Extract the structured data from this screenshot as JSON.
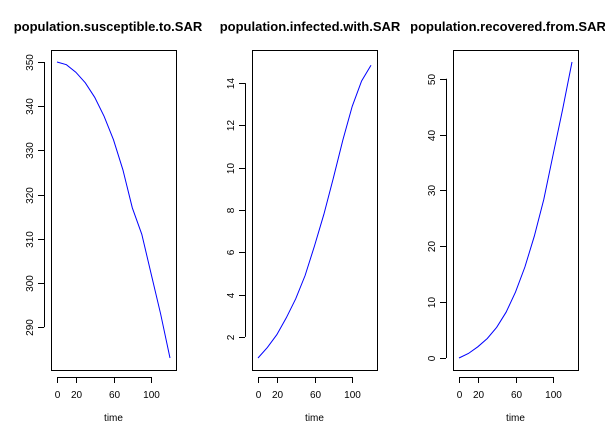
{
  "chart_data": [
    {
      "type": "line",
      "title": "population.susceptible.to.SAR",
      "xlabel": "time",
      "ylabel": "",
      "xlim": [
        0,
        120
      ],
      "ylim": [
        283,
        350
      ],
      "xticks": [
        0,
        20,
        60,
        100
      ],
      "yticks": [
        290,
        300,
        310,
        320,
        330,
        340,
        350
      ],
      "grid": false,
      "series": [
        {
          "color": "#0000ff",
          "x": [
            0,
            10,
            20,
            30,
            40,
            50,
            60,
            70,
            80,
            90,
            100,
            110,
            120
          ],
          "y": [
            350,
            349.4,
            347.7,
            345.3,
            342.0,
            337.7,
            332.4,
            325.6,
            317.0,
            311.0,
            302.0,
            293.0,
            283.0
          ]
        }
      ]
    },
    {
      "type": "line",
      "title": "population.infected.with.SAR",
      "xlabel": "time",
      "ylabel": "",
      "xlim": [
        0,
        120
      ],
      "ylim": [
        1,
        15
      ],
      "xticks": [
        0,
        20,
        60,
        100
      ],
      "yticks": [
        2,
        4,
        6,
        8,
        10,
        12,
        14
      ],
      "grid": false,
      "series": [
        {
          "color": "#0000ff",
          "x": [
            0,
            10,
            20,
            30,
            40,
            50,
            60,
            70,
            80,
            90,
            100,
            110,
            120
          ],
          "y": [
            1.0,
            1.5,
            2.1,
            2.9,
            3.8,
            4.9,
            6.3,
            7.8,
            9.5,
            11.3,
            12.9,
            14.1,
            14.85
          ]
        }
      ]
    },
    {
      "type": "line",
      "title": "population.recovered.from.SAR",
      "xlabel": "time",
      "ylabel": "",
      "xlim": [
        0,
        120
      ],
      "ylim": [
        0,
        53
      ],
      "xticks": [
        0,
        20,
        60,
        100
      ],
      "yticks": [
        0,
        10,
        20,
        30,
        40,
        50
      ],
      "grid": false,
      "series": [
        {
          "color": "#0000ff",
          "x": [
            0,
            10,
            20,
            30,
            40,
            50,
            60,
            70,
            80,
            90,
            100,
            110,
            120
          ],
          "y": [
            0,
            0.8,
            2.0,
            3.5,
            5.5,
            8.2,
            11.8,
            16.3,
            21.8,
            28.4,
            36.5,
            44.5,
            53.0
          ]
        }
      ]
    }
  ]
}
